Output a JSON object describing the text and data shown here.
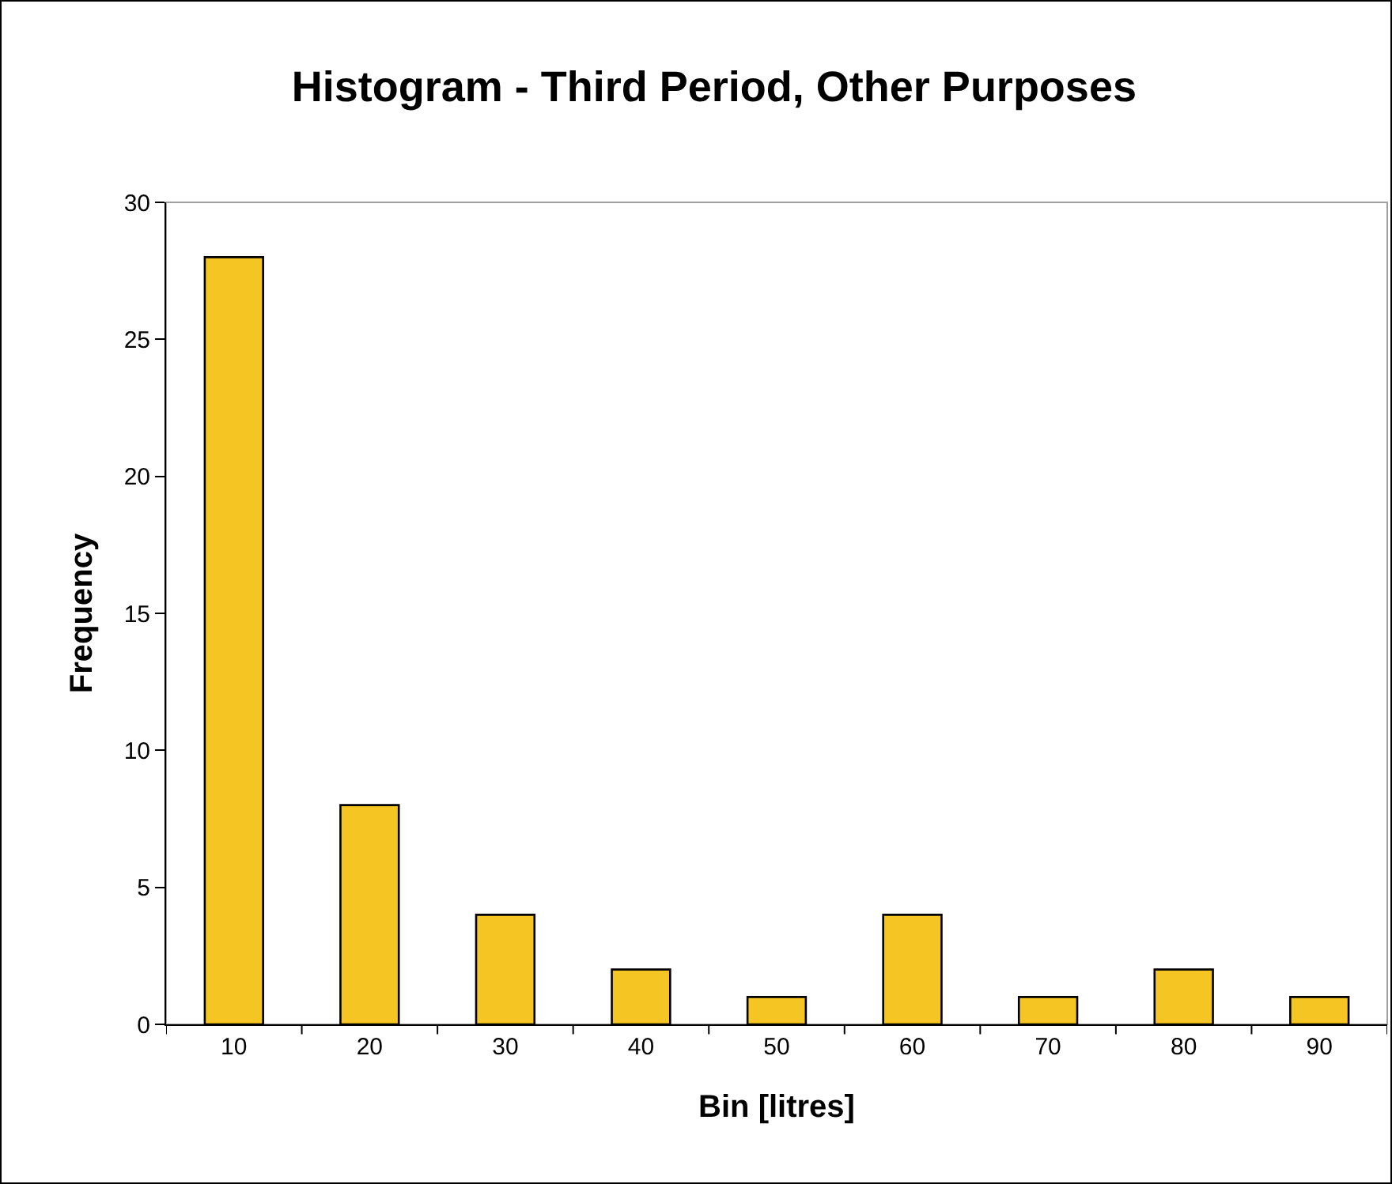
{
  "chart_data": {
    "type": "bar",
    "title": "Histogram - Third Period, Other Purposes",
    "xlabel": "Bin [litres]",
    "ylabel": "Frequency",
    "categories": [
      "10",
      "20",
      "30",
      "40",
      "50",
      "60",
      "70",
      "80",
      "90"
    ],
    "values": [
      28,
      8,
      4,
      2,
      1,
      4,
      1,
      2,
      1
    ],
    "color": "#f5c623",
    "ylim": [
      0,
      30
    ],
    "yticks": [
      0,
      5,
      10,
      15,
      20,
      25,
      30
    ],
    "grid": false,
    "legend": false
  }
}
